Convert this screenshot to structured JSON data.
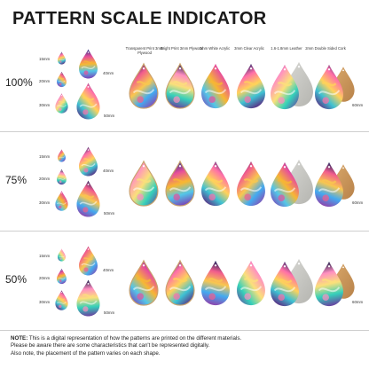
{
  "title": "PATTERN SCALE INDICATOR",
  "materials": [
    "Transparent Print 3mm Plywood",
    "Bright Print 3mm Plywood",
    "3mm White Acrylic",
    "3mm Clear Acrylic",
    "1.6-1.8mm Leather",
    "2mm Double Sided Cork"
  ],
  "sizes": {
    "small": "15mm",
    "medium": "20mm",
    "large": "30mm",
    "xlarge": "40mm",
    "xxlarge": "50mm",
    "product": "60mm"
  },
  "sections": [
    {
      "scale": "100%"
    },
    {
      "scale": "75%"
    },
    {
      "scale": "50%"
    }
  ],
  "footer": {
    "note_label": "NOTE:",
    "line1": " This is a digital representation of how the patterns are printed on the different materials.",
    "line2": "Please be aware there are some characteristics that can't be represented digitally.",
    "line3": "Also note, the placement of the pattern varies on each shape."
  }
}
